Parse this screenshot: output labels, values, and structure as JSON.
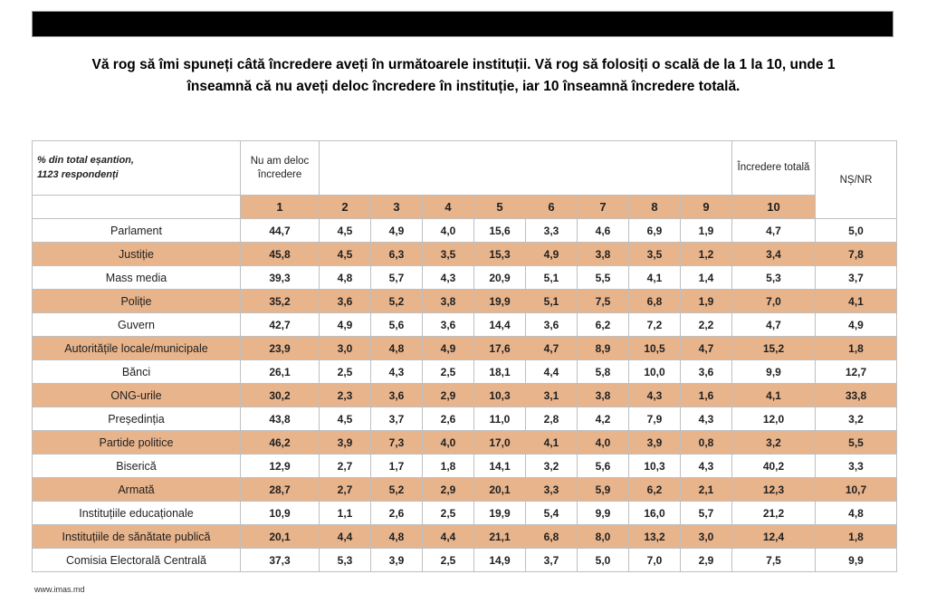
{
  "title_line1": "Vă rog să îmi spuneți câtă încredere aveți în următoarele instituții. Vă rog să folosiți o scală de la 1 la 10, unde 1",
  "title_line2": "înseamnă că nu aveți deloc încredere în instituție, iar 10 înseamnă încredere totală.",
  "footer": "www.imas.md",
  "colors": {
    "stripe_tan": "#e8b48c",
    "grid_gray": "#bfbfbf",
    "top_bar_black": "#000000"
  },
  "table": {
    "sample_note_line1": "% din total eșantion,",
    "sample_note_line2": "1123 respondenți",
    "scale_low_label": "Nu am deloc încredere",
    "scale_high_label": "Încredere totală",
    "dk_na_label": "NȘ/NR",
    "scale_headers": [
      "1",
      "2",
      "3",
      "4",
      "5",
      "6",
      "7",
      "8",
      "9",
      "10"
    ],
    "rows": [
      {
        "label": "Parlament",
        "scores": [
          "44,7",
          "4,5",
          "4,9",
          "4,0",
          "15,6",
          "3,3",
          "4,6",
          "6,9",
          "1,9",
          "4,7"
        ],
        "ns_nr": "5,0"
      },
      {
        "label": "Justiție",
        "scores": [
          "45,8",
          "4,5",
          "6,3",
          "3,5",
          "15,3",
          "4,9",
          "3,8",
          "3,5",
          "1,2",
          "3,4"
        ],
        "ns_nr": "7,8"
      },
      {
        "label": "Mass media",
        "scores": [
          "39,3",
          "4,8",
          "5,7",
          "4,3",
          "20,9",
          "5,1",
          "5,5",
          "4,1",
          "1,4",
          "5,3"
        ],
        "ns_nr": "3,7"
      },
      {
        "label": "Poliție",
        "scores": [
          "35,2",
          "3,6",
          "5,2",
          "3,8",
          "19,9",
          "5,1",
          "7,5",
          "6,8",
          "1,9",
          "7,0"
        ],
        "ns_nr": "4,1"
      },
      {
        "label": "Guvern",
        "scores": [
          "42,7",
          "4,9",
          "5,6",
          "3,6",
          "14,4",
          "3,6",
          "6,2",
          "7,2",
          "2,2",
          "4,7"
        ],
        "ns_nr": "4,9"
      },
      {
        "label": "Autoritățile locale/municipale",
        "scores": [
          "23,9",
          "3,0",
          "4,8",
          "4,9",
          "17,6",
          "4,7",
          "8,9",
          "10,5",
          "4,7",
          "15,2"
        ],
        "ns_nr": "1,8"
      },
      {
        "label": "Bănci",
        "scores": [
          "26,1",
          "2,5",
          "4,3",
          "2,5",
          "18,1",
          "4,4",
          "5,8",
          "10,0",
          "3,6",
          "9,9"
        ],
        "ns_nr": "12,7"
      },
      {
        "label": "ONG-urile",
        "scores": [
          "30,2",
          "2,3",
          "3,6",
          "2,9",
          "10,3",
          "3,1",
          "3,8",
          "4,3",
          "1,6",
          "4,1"
        ],
        "ns_nr": "33,8"
      },
      {
        "label": "Președinția",
        "scores": [
          "43,8",
          "4,5",
          "3,7",
          "2,6",
          "11,0",
          "2,8",
          "4,2",
          "7,9",
          "4,3",
          "12,0"
        ],
        "ns_nr": "3,2"
      },
      {
        "label": "Partide politice",
        "scores": [
          "46,2",
          "3,9",
          "7,3",
          "4,0",
          "17,0",
          "4,1",
          "4,0",
          "3,9",
          "0,8",
          "3,2"
        ],
        "ns_nr": "5,5"
      },
      {
        "label": "Biserică",
        "scores": [
          "12,9",
          "2,7",
          "1,7",
          "1,8",
          "14,1",
          "3,2",
          "5,6",
          "10,3",
          "4,3",
          "40,2"
        ],
        "ns_nr": "3,3"
      },
      {
        "label": "Armată",
        "scores": [
          "28,7",
          "2,7",
          "5,2",
          "2,9",
          "20,1",
          "3,3",
          "5,9",
          "6,2",
          "2,1",
          "12,3"
        ],
        "ns_nr": "10,7"
      },
      {
        "label": "Instituțiile educaționale",
        "scores": [
          "10,9",
          "1,1",
          "2,6",
          "2,5",
          "19,9",
          "5,4",
          "9,9",
          "16,0",
          "5,7",
          "21,2"
        ],
        "ns_nr": "4,8"
      },
      {
        "label": "Instituțiile de sănătate publică",
        "scores": [
          "20,1",
          "4,4",
          "4,8",
          "4,4",
          "21,1",
          "6,8",
          "8,0",
          "13,2",
          "3,0",
          "12,4"
        ],
        "ns_nr": "1,8"
      },
      {
        "label": "Comisia Electorală Centrală",
        "scores": [
          "37,3",
          "5,3",
          "3,9",
          "2,5",
          "14,9",
          "3,7",
          "5,0",
          "7,0",
          "2,9",
          "7,5"
        ],
        "ns_nr": "9,9"
      }
    ]
  },
  "chart_data": {
    "type": "table",
    "title": "Vă rog să îmi spuneți câtă încredere aveți în următoarele instituții. Vă rog să folosiți o scală de la 1 la 10, unde 1 înseamnă că nu aveți deloc încredere în instituție, iar 10 înseamnă încredere totală.",
    "sample_note": "% din total eșantion, 1123 respondenți",
    "columns": [
      "1 (Nu am deloc încredere)",
      "2",
      "3",
      "4",
      "5",
      "6",
      "7",
      "8",
      "9",
      "10 (Încredere totală)",
      "NȘ/NR"
    ],
    "rows": [
      {
        "institution": "Parlament",
        "values": [
          44.7,
          4.5,
          4.9,
          4.0,
          15.6,
          3.3,
          4.6,
          6.9,
          1.9,
          4.7,
          5.0
        ]
      },
      {
        "institution": "Justiție",
        "values": [
          45.8,
          4.5,
          6.3,
          3.5,
          15.3,
          4.9,
          3.8,
          3.5,
          1.2,
          3.4,
          7.8
        ]
      },
      {
        "institution": "Mass media",
        "values": [
          39.3,
          4.8,
          5.7,
          4.3,
          20.9,
          5.1,
          5.5,
          4.1,
          1.4,
          5.3,
          3.7
        ]
      },
      {
        "institution": "Poliție",
        "values": [
          35.2,
          3.6,
          5.2,
          3.8,
          19.9,
          5.1,
          7.5,
          6.8,
          1.9,
          7.0,
          4.1
        ]
      },
      {
        "institution": "Guvern",
        "values": [
          42.7,
          4.9,
          5.6,
          3.6,
          14.4,
          3.6,
          6.2,
          7.2,
          2.2,
          4.7,
          4.9
        ]
      },
      {
        "institution": "Autoritățile locale/municipale",
        "values": [
          23.9,
          3.0,
          4.8,
          4.9,
          17.6,
          4.7,
          8.9,
          10.5,
          4.7,
          15.2,
          1.8
        ]
      },
      {
        "institution": "Bănci",
        "values": [
          26.1,
          2.5,
          4.3,
          2.5,
          18.1,
          4.4,
          5.8,
          10.0,
          3.6,
          9.9,
          12.7
        ]
      },
      {
        "institution": "ONG-urile",
        "values": [
          30.2,
          2.3,
          3.6,
          2.9,
          10.3,
          3.1,
          3.8,
          4.3,
          1.6,
          4.1,
          33.8
        ]
      },
      {
        "institution": "Președinția",
        "values": [
          43.8,
          4.5,
          3.7,
          2.6,
          11.0,
          2.8,
          4.2,
          7.9,
          4.3,
          12.0,
          3.2
        ]
      },
      {
        "institution": "Partide politice",
        "values": [
          46.2,
          3.9,
          7.3,
          4.0,
          17.0,
          4.1,
          4.0,
          3.9,
          0.8,
          3.2,
          5.5
        ]
      },
      {
        "institution": "Biserică",
        "values": [
          12.9,
          2.7,
          1.7,
          1.8,
          14.1,
          3.2,
          5.6,
          10.3,
          4.3,
          40.2,
          3.3
        ]
      },
      {
        "institution": "Armată",
        "values": [
          28.7,
          2.7,
          5.2,
          2.9,
          20.1,
          3.3,
          5.9,
          6.2,
          2.1,
          12.3,
          10.7
        ]
      },
      {
        "institution": "Instituțiile educaționale",
        "values": [
          10.9,
          1.1,
          2.6,
          2.5,
          19.9,
          5.4,
          9.9,
          16.0,
          5.7,
          21.2,
          4.8
        ]
      },
      {
        "institution": "Instituțiile de sănătate publică",
        "values": [
          20.1,
          4.4,
          4.8,
          4.4,
          21.1,
          6.8,
          8.0,
          13.2,
          3.0,
          12.4,
          1.8
        ]
      },
      {
        "institution": "Comisia Electorală Centrală",
        "values": [
          37.3,
          5.3,
          3.9,
          2.5,
          14.9,
          3.7,
          5.0,
          7.0,
          2.9,
          7.5,
          9.9
        ]
      }
    ]
  }
}
